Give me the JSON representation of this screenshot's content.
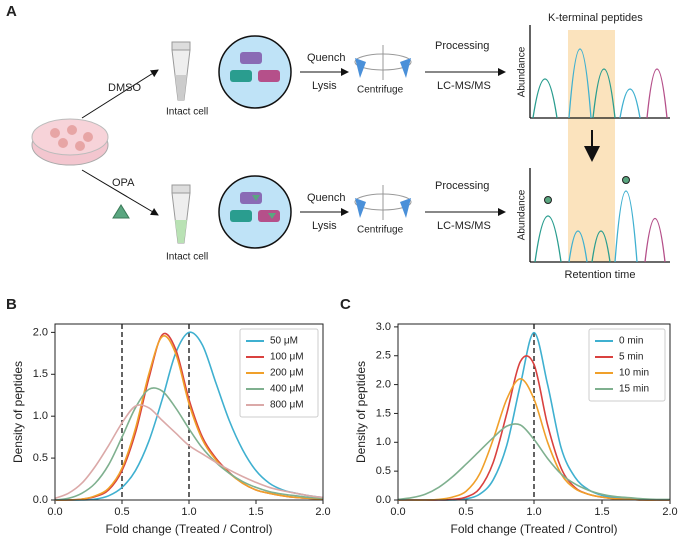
{
  "panel_a": {
    "label": "A",
    "dmso": "DMSO",
    "opa": "OPA",
    "intact_top": "Intact cell",
    "intact_bottom": "Intact cell",
    "quench_top": "Quench",
    "lysis_top": "Lysis",
    "quench_bottom": "Quench",
    "lysis_bottom": "Lysis",
    "centrifuge_top": "Centrifuge",
    "centrifuge_bottom": "Centrifuge",
    "processing_top": "Processing",
    "lcms_top": "LC-MS/MS",
    "processing_bottom": "Processing",
    "lcms_bottom": "LC-MS/MS",
    "peptides": "K-terminal peptides",
    "abundance_top": "Abundance",
    "abundance_bottom": "Abundance",
    "retention": "Retention time"
  },
  "chart_data": [
    {
      "type": "line",
      "panel_label": "B",
      "xlabel": "Fold change (Treated / Control)",
      "ylabel": "Density of peptides",
      "x": [
        0,
        0.1,
        0.2,
        0.3,
        0.4,
        0.5,
        0.6,
        0.7,
        0.8,
        0.9,
        1.0,
        1.1,
        1.2,
        1.3,
        1.4,
        1.5,
        1.6,
        1.7,
        1.8,
        1.9,
        2.0
      ],
      "series": [
        {
          "name": "50 μM",
          "color": "#3fb0d0",
          "values": [
            0,
            0,
            0,
            0.01,
            0.05,
            0.15,
            0.35,
            0.7,
            1.2,
            1.75,
            2.0,
            1.85,
            1.4,
            0.95,
            0.6,
            0.35,
            0.2,
            0.12,
            0.08,
            0.05,
            0.03
          ]
        },
        {
          "name": "100 μM",
          "color": "#d9413f",
          "values": [
            0,
            0,
            0.01,
            0.04,
            0.12,
            0.35,
            0.8,
            1.45,
            1.97,
            1.8,
            1.2,
            0.75,
            0.5,
            0.33,
            0.2,
            0.12,
            0.08,
            0.05,
            0.03,
            0.02,
            0.01
          ]
        },
        {
          "name": "200 μM",
          "color": "#f0a02a",
          "values": [
            0,
            0,
            0.01,
            0.05,
            0.14,
            0.38,
            0.85,
            1.5,
            1.95,
            1.75,
            1.15,
            0.72,
            0.48,
            0.32,
            0.2,
            0.12,
            0.08,
            0.05,
            0.03,
            0.02,
            0.01
          ]
        },
        {
          "name": "400 μM",
          "color": "#7fb08f",
          "values": [
            0,
            0.02,
            0.08,
            0.2,
            0.42,
            0.75,
            1.1,
            1.32,
            1.3,
            1.1,
            0.85,
            0.62,
            0.45,
            0.32,
            0.22,
            0.15,
            0.1,
            0.07,
            0.05,
            0.03,
            0.02
          ]
        },
        {
          "name": "800 μM",
          "color": "#dba9a8",
          "values": [
            0.02,
            0.08,
            0.2,
            0.4,
            0.65,
            0.92,
            1.12,
            1.1,
            0.95,
            0.8,
            0.65,
            0.55,
            0.45,
            0.36,
            0.28,
            0.21,
            0.15,
            0.11,
            0.08,
            0.05,
            0.03
          ]
        }
      ],
      "reference_lines": [
        0.5,
        1.0
      ],
      "xlim": [
        0,
        2
      ],
      "xticks": [
        {
          "value": 0,
          "label": "0.0"
        },
        {
          "value": 0.5,
          "label": "0.5"
        },
        {
          "value": 1,
          "label": "1.0"
        },
        {
          "value": 1.5,
          "label": "1.5"
        },
        {
          "value": 2,
          "label": "2.0"
        }
      ],
      "ylim": [
        0,
        2.1
      ],
      "yticks": [
        {
          "value": 0,
          "label": "0.0"
        },
        {
          "value": 0.5,
          "label": "0.5"
        },
        {
          "value": 1,
          "label": "1.0"
        },
        {
          "value": 1.5,
          "label": "1.5"
        },
        {
          "value": 2,
          "label": "2.0"
        }
      ],
      "legend": "upper right",
      "grid": false
    },
    {
      "type": "line",
      "panel_label": "C",
      "xlabel": "Fold change (Treated / Control)",
      "ylabel": "Density of peptides",
      "x": [
        0,
        0.1,
        0.2,
        0.3,
        0.4,
        0.5,
        0.6,
        0.7,
        0.8,
        0.9,
        1.0,
        1.1,
        1.2,
        1.3,
        1.4,
        1.5,
        1.6,
        1.7,
        1.8,
        1.9,
        2.0
      ],
      "series": [
        {
          "name": "0 min",
          "color": "#3fb0d0",
          "values": [
            0,
            0,
            0,
            0,
            0,
            0.02,
            0.1,
            0.35,
            0.95,
            2.0,
            2.9,
            2.0,
            0.9,
            0.4,
            0.18,
            0.08,
            0.04,
            0.02,
            0.01,
            0,
            0
          ]
        },
        {
          "name": "5 min",
          "color": "#d9413f",
          "values": [
            0,
            0,
            0,
            0,
            0.01,
            0.05,
            0.2,
            0.65,
            1.5,
            2.4,
            2.35,
            1.3,
            0.55,
            0.22,
            0.1,
            0.05,
            0.02,
            0.01,
            0,
            0,
            0
          ]
        },
        {
          "name": "10 min",
          "color": "#f0a02a",
          "values": [
            0,
            0,
            0,
            0.01,
            0.05,
            0.15,
            0.45,
            1.05,
            1.75,
            2.1,
            1.75,
            1.0,
            0.45,
            0.2,
            0.1,
            0.05,
            0.02,
            0.01,
            0,
            0,
            0
          ]
        },
        {
          "name": "15 min",
          "color": "#7fb08f",
          "values": [
            0.01,
            0.04,
            0.1,
            0.22,
            0.4,
            0.62,
            0.85,
            1.08,
            1.28,
            1.3,
            1.05,
            0.72,
            0.45,
            0.28,
            0.17,
            0.1,
            0.06,
            0.04,
            0.02,
            0.01,
            0.01
          ]
        }
      ],
      "reference_lines": [
        1.0
      ],
      "xlim": [
        0,
        2
      ],
      "xticks": [
        {
          "value": 0,
          "label": "0.0"
        },
        {
          "value": 0.5,
          "label": "0.5"
        },
        {
          "value": 1,
          "label": "1.0"
        },
        {
          "value": 1.5,
          "label": "1.5"
        },
        {
          "value": 2,
          "label": "2.0"
        }
      ],
      "ylim": [
        0,
        3.05
      ],
      "yticks": [
        {
          "value": 0,
          "label": "0.0"
        },
        {
          "value": 0.5,
          "label": "0.5"
        },
        {
          "value": 1,
          "label": "1.0"
        },
        {
          "value": 1.5,
          "label": "1.5"
        },
        {
          "value": 2,
          "label": "2.0"
        },
        {
          "value": 2.5,
          "label": "2.5"
        },
        {
          "value": 3,
          "label": "3.0"
        }
      ],
      "legend": "upper right",
      "grid": false
    }
  ]
}
